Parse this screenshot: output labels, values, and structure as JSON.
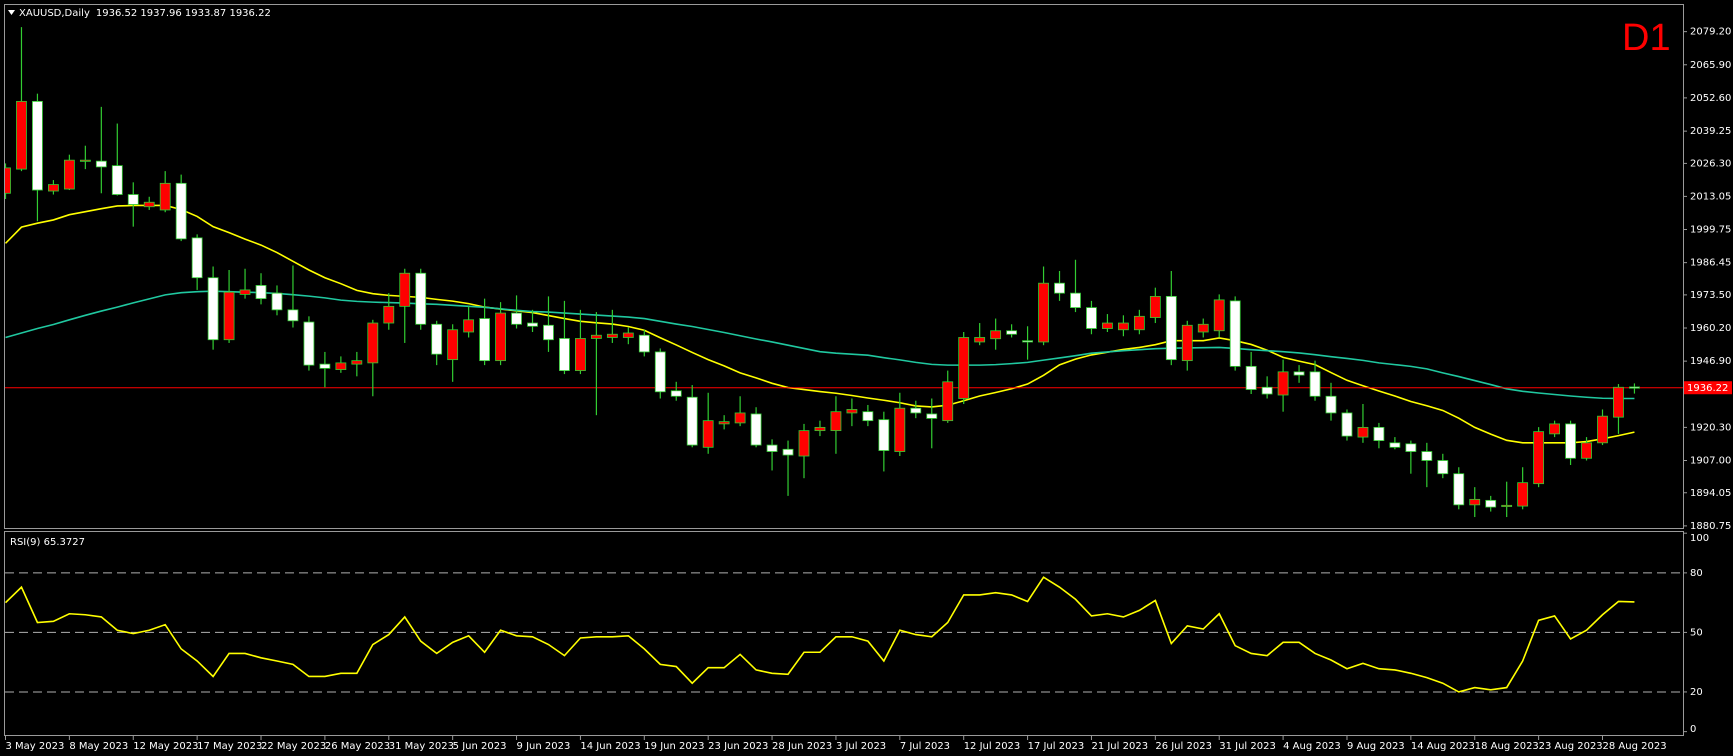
{
  "chart_data": [
    {
      "type": "candlestick",
      "title": "XAUUSD,Daily",
      "ohlc_text": "1936.52 1937.96 1933.87 1936.22",
      "annotation": "D1",
      "categories": [
        "3 May 2023",
        null,
        null,
        null,
        "8 May 2023",
        null,
        null,
        null,
        "12 May 2023",
        null,
        null,
        null,
        "17 May 2023",
        null,
        null,
        null,
        "22 May 2023",
        null,
        null,
        null,
        "26 May 2023",
        null,
        null,
        null,
        "31 May 2023",
        null,
        null,
        null,
        "5 Jun 2023",
        null,
        null,
        null,
        "9 Jun 2023",
        null,
        null,
        null,
        "14 Jun 2023",
        null,
        null,
        null,
        "19 Jun 2023",
        null,
        null,
        null,
        "23 Jun 2023",
        null,
        null,
        null,
        "28 Jun 2023",
        null,
        null,
        null,
        "3 Jul 2023",
        null,
        null,
        null,
        "7 Jul 2023",
        null,
        null,
        null,
        "12 Jul 2023",
        null,
        null,
        null,
        "17 Jul 2023",
        null,
        null,
        null,
        "21 Jul 2023",
        null,
        null,
        null,
        "26 Jul 2023",
        null,
        null,
        null,
        "31 Jul 2023",
        null,
        null,
        null,
        "4 Aug 2023",
        null,
        null,
        null,
        "9 Aug 2023",
        null,
        null,
        null,
        "14 Aug 2023",
        null,
        null,
        null,
        "18 Aug 2023",
        null,
        null,
        null,
        "23 Aug 2023",
        null,
        null,
        null,
        "28 Aug 2023",
        null,
        null
      ],
      "open": [
        2014.3,
        2024.0,
        2051.2,
        2015.2,
        2016.0,
        2027.4,
        2027.2,
        2025.4,
        2013.8,
        2008.9,
        2007.6,
        2018.3,
        1996.4,
        1980.4,
        1955.5,
        1973.7,
        1977.3,
        1974.2,
        1967.5,
        1962.6,
        1945.7,
        1943.5,
        1945.7,
        1946.2,
        1962.2,
        1968.9,
        1982.2,
        1961.7,
        1947.5,
        1958.6,
        1964.0,
        1947.1,
        1966.2,
        1962.2,
        1961.3,
        1956.0,
        1943.1,
        1956.0,
        1956.4,
        1956.4,
        1957.3,
        1950.6,
        1935.0,
        1932.4,
        1912.3,
        1921.7,
        1922.1,
        1925.7,
        1913.2,
        1911.5,
        1908.8,
        1919.0,
        1919.0,
        1926.1,
        1926.6,
        1923.4,
        1910.6,
        1928.0,
        1925.7,
        1923.0,
        1931.9,
        1954.6,
        1955.9,
        1959.1,
        1955.1,
        1954.6,
        1978.2,
        1974.2,
        1968.4,
        1960.0,
        1959.5,
        1959.5,
        1964.4,
        1972.9,
        1947.1,
        1958.6,
        1959.1,
        1971.1,
        1944.8,
        1936.4,
        1933.3,
        1942.6,
        1942.6,
        1932.8,
        1926.1,
        1916.4,
        1920.3,
        1914.1,
        1913.7,
        1910.6,
        1907.0,
        1901.7,
        1889.2,
        1891.0,
        1888.7,
        1888.7,
        1897.7,
        1917.7,
        1921.7,
        1907.9,
        1914.1,
        1924.4,
        1936.52
      ],
      "high": [
        2026.3,
        2081.0,
        2054.3,
        2019.6,
        2029.8,
        2033.4,
        2049.0,
        2042.3,
        2018.7,
        2012.9,
        2023.2,
        2021.8,
        1997.8,
        1984.9,
        1983.5,
        1984.0,
        1982.2,
        1977.3,
        1985.3,
        1964.9,
        1950.6,
        1948.8,
        1950.6,
        1963.5,
        1974.2,
        1984.0,
        1984.0,
        1963.1,
        1961.7,
        1968.9,
        1972.0,
        1970.6,
        1973.3,
        1967.5,
        1972.9,
        1971.1,
        1967.5,
        1966.6,
        1967.5,
        1960.4,
        1959.5,
        1952.0,
        1938.6,
        1937.3,
        1934.2,
        1925.2,
        1932.8,
        1928.4,
        1915.5,
        1915.0,
        1921.7,
        1923.0,
        1932.8,
        1931.9,
        1929.3,
        1926.6,
        1934.2,
        1931.0,
        1931.9,
        1943.1,
        1958.6,
        1962.2,
        1964.0,
        1961.7,
        1960.9,
        1984.9,
        1983.1,
        1987.6,
        1971.1,
        1965.8,
        1965.3,
        1967.5,
        1976.4,
        1983.1,
        1963.1,
        1964.0,
        1973.7,
        1972.9,
        1950.6,
        1940.8,
        1947.5,
        1945.3,
        1947.1,
        1938.2,
        1927.5,
        1929.7,
        1922.1,
        1916.4,
        1915.0,
        1914.1,
        1909.7,
        1904.3,
        1896.3,
        1892.8,
        1898.5,
        1904.3,
        1920.4,
        1923.0,
        1923.0,
        1916.4,
        1927.5,
        1937.7,
        1937.96
      ],
      "low": [
        2012.0,
        2023.2,
        2003.1,
        2013.8,
        2015.6,
        2024.0,
        2014.3,
        2013.4,
        2000.9,
        2007.6,
        2006.7,
        1995.1,
        1975.5,
        1951.5,
        1954.2,
        1972.0,
        1969.7,
        1965.3,
        1960.4,
        1943.1,
        1936.4,
        1942.2,
        1940.8,
        1932.8,
        1959.5,
        1954.2,
        1959.5,
        1945.3,
        1938.6,
        1956.4,
        1945.3,
        1945.3,
        1960.0,
        1958.6,
        1950.6,
        1941.7,
        1941.7,
        1925.2,
        1954.2,
        1953.7,
        1948.8,
        1931.9,
        1931.0,
        1912.3,
        1909.7,
        1919.5,
        1920.8,
        1912.3,
        1903.0,
        1892.8,
        1899.9,
        1916.8,
        1909.7,
        1920.8,
        1920.8,
        1902.6,
        1908.8,
        1924.0,
        1911.9,
        1922.1,
        1929.7,
        1953.3,
        1951.5,
        1956.4,
        1947.5,
        1953.3,
        1971.1,
        1966.6,
        1957.7,
        1958.6,
        1956.9,
        1957.7,
        1962.2,
        1945.3,
        1943.1,
        1956.4,
        1956.4,
        1943.1,
        1933.7,
        1931.9,
        1926.6,
        1938.2,
        1931.0,
        1923.0,
        1915.0,
        1914.1,
        1911.9,
        1911.5,
        1901.7,
        1896.3,
        1899.9,
        1887.4,
        1884.3,
        1886.5,
        1884.3,
        1887.4,
        1896.3,
        1916.4,
        1905.2,
        1907.0,
        1913.2,
        1917.7,
        1933.87
      ],
      "close": [
        2024.5,
        2051.2,
        2015.6,
        2017.8,
        2027.6,
        2027.6,
        2024.9,
        2013.8,
        2009.8,
        2010.7,
        2018.3,
        1996.0,
        1980.4,
        1955.5,
        1974.6,
        1975.5,
        1972.0,
        1967.5,
        1963.1,
        1945.3,
        1944.0,
        1946.2,
        1947.1,
        1962.2,
        1968.9,
        1982.2,
        1961.7,
        1949.7,
        1959.5,
        1963.5,
        1947.1,
        1966.2,
        1961.7,
        1960.9,
        1955.5,
        1943.1,
        1956.0,
        1957.3,
        1957.7,
        1958.2,
        1950.6,
        1934.6,
        1932.8,
        1913.2,
        1923.0,
        1922.6,
        1926.1,
        1913.2,
        1910.6,
        1909.2,
        1919.0,
        1920.3,
        1926.6,
        1927.5,
        1923.0,
        1911.0,
        1928.0,
        1926.1,
        1923.9,
        1938.6,
        1956.4,
        1956.4,
        1959.1,
        1957.7,
        1954.6,
        1978.2,
        1974.2,
        1968.4,
        1960.0,
        1962.2,
        1962.2,
        1964.9,
        1972.9,
        1947.5,
        1961.3,
        1961.7,
        1971.5,
        1944.8,
        1935.5,
        1933.7,
        1942.6,
        1941.3,
        1932.8,
        1926.1,
        1916.8,
        1920.3,
        1915.0,
        1912.3,
        1910.6,
        1907.0,
        1901.7,
        1889.2,
        1891.4,
        1888.3,
        1889.0,
        1898.1,
        1918.6,
        1921.7,
        1907.9,
        1914.1,
        1924.8,
        1936.4,
        1936.22
      ],
      "up_color": "#ff0000",
      "down_color": "#ffffff",
      "wick_color": "#32cd32",
      "lines": [
        {
          "color": "#ffff00",
          "values": [
            1994.2,
            2000.7,
            2002.3,
            2003.6,
            2005.7,
            2006.9,
            2008.1,
            2009.2,
            2009.4,
            2009.4,
            2009.4,
            2007.8,
            2005.0,
            2000.9,
            1998.5,
            1995.9,
            1993.5,
            1990.5,
            1987.0,
            1983.5,
            1980.4,
            1978.0,
            1975.3,
            1974.0,
            1973.3,
            1972.9,
            1972.5,
            1971.7,
            1971.0,
            1970.0,
            1968.6,
            1967.8,
            1967.1,
            1966.4,
            1965.2,
            1964.0,
            1962.9,
            1962.3,
            1961.8,
            1960.8,
            1959.3,
            1956.3,
            1953.4,
            1950.4,
            1947.5,
            1945.0,
            1942.2,
            1940.2,
            1938.0,
            1936.3,
            1935.5,
            1934.7,
            1934.0,
            1933.1,
            1932.1,
            1931.2,
            1930.2,
            1928.9,
            1928.5,
            1929.2,
            1931.0,
            1932.9,
            1934.3,
            1935.8,
            1937.7,
            1941.2,
            1945.4,
            1947.7,
            1949.4,
            1950.5,
            1951.6,
            1952.4,
            1953.5,
            1955.1,
            1955.1,
            1955.1,
            1956.2,
            1955.1,
            1953.6,
            1951.3,
            1948.4,
            1946.9,
            1945.5,
            1942.3,
            1939.2,
            1937.0,
            1934.9,
            1932.9,
            1930.7,
            1929.0,
            1927.1,
            1924.0,
            1920.3,
            1917.6,
            1915.1,
            1914.1,
            1914.1,
            1914.1,
            1914.1,
            1914.6,
            1915.7,
            1917.0,
            1918.4
          ]
        },
        {
          "color": "#20c8a0",
          "values": [
            1956.4,
            1958.2,
            1960.0,
            1961.6,
            1963.5,
            1965.3,
            1967.0,
            1968.6,
            1970.3,
            1971.9,
            1973.5,
            1974.4,
            1974.8,
            1975.0,
            1974.8,
            1974.6,
            1974.4,
            1974.1,
            1973.6,
            1973.0,
            1972.3,
            1971.4,
            1970.9,
            1970.6,
            1970.4,
            1970.2,
            1969.9,
            1969.7,
            1969.3,
            1968.9,
            1968.5,
            1967.9,
            1967.3,
            1966.8,
            1966.6,
            1966.2,
            1965.8,
            1965.4,
            1965.0,
            1964.6,
            1964.0,
            1962.9,
            1961.8,
            1960.8,
            1959.6,
            1958.4,
            1957.1,
            1955.8,
            1954.6,
            1953.3,
            1952.0,
            1950.7,
            1950.1,
            1949.7,
            1949.3,
            1948.3,
            1947.4,
            1946.4,
            1945.6,
            1945.3,
            1945.3,
            1945.3,
            1945.5,
            1945.9,
            1946.4,
            1947.3,
            1948.2,
            1949.1,
            1950.1,
            1950.6,
            1951.1,
            1951.5,
            1951.9,
            1952.1,
            1952.2,
            1952.3,
            1952.4,
            1952.0,
            1951.5,
            1951.1,
            1950.7,
            1950.2,
            1949.5,
            1948.7,
            1948.0,
            1947.2,
            1946.2,
            1945.5,
            1944.8,
            1943.8,
            1942.2,
            1940.7,
            1939.1,
            1937.5,
            1935.8,
            1934.8,
            1934.1,
            1933.5,
            1932.9,
            1932.4,
            1932.0,
            1931.9,
            1931.9
          ]
        }
      ],
      "price_line": {
        "value": 1936.22,
        "color": "#ff0000"
      },
      "ylim": [
        1879.9,
        2089.9
      ],
      "yticks": [
        {
          "value": 2079.2,
          "label": "2079.20"
        },
        {
          "value": 2065.9,
          "label": "2065.90"
        },
        {
          "value": 2052.6,
          "label": "2052.60"
        },
        2039.25,
        {
          "value": 2026.3,
          "label": "2026.30"
        },
        2013.05,
        1999.75,
        1986.45,
        {
          "value": 1973.5,
          "label": "1973.50"
        },
        {
          "value": 1960.2,
          "label": "1960.20"
        },
        {
          "value": 1946.9,
          "label": "1946.90"
        },
        {
          "value": 1920.3,
          "label": "1920.30"
        },
        {
          "value": 1907,
          "label": "1907.00"
        },
        1894.05,
        1880.75
      ]
    },
    {
      "type": "line",
      "title": "RSI(9) 65.3727",
      "color": "#ffff00",
      "values": [
        65.0,
        72.8,
        55.0,
        55.6,
        59.4,
        58.9,
        57.8,
        51.1,
        49.4,
        51.1,
        53.9,
        41.7,
        35.6,
        27.8,
        39.4,
        39.4,
        37.2,
        35.6,
        33.9,
        27.8,
        27.8,
        29.4,
        29.4,
        43.9,
        48.9,
        57.8,
        45.6,
        39.4,
        45.0,
        48.3,
        40.0,
        51.1,
        48.3,
        47.8,
        43.9,
        38.3,
        47.2,
        47.8,
        47.8,
        48.3,
        41.7,
        33.9,
        32.8,
        24.4,
        32.2,
        32.2,
        38.9,
        31.1,
        29.4,
        28.9,
        40.0,
        40.0,
        47.8,
        47.8,
        45.6,
        35.6,
        51.1,
        48.9,
        47.8,
        55.0,
        68.9,
        68.9,
        70.0,
        68.9,
        65.6,
        77.8,
        72.8,
        66.7,
        58.3,
        59.4,
        57.8,
        61.1,
        66.1,
        44.4,
        53.3,
        51.7,
        59.4,
        43.3,
        39.4,
        38.3,
        45.0,
        45.0,
        39.4,
        36.1,
        31.7,
        34.4,
        31.7,
        31.1,
        29.4,
        27.2,
        24.4,
        20.0,
        22.2,
        21.1,
        22.2,
        35.6,
        56.1,
        58.3,
        46.7,
        51.1,
        58.9,
        65.6,
        65.3727
      ],
      "ylim": [
        -1.7,
        100.6
      ],
      "yticks": [
        0,
        20,
        50,
        80,
        100
      ],
      "levels": [
        20,
        50,
        80
      ]
    }
  ]
}
